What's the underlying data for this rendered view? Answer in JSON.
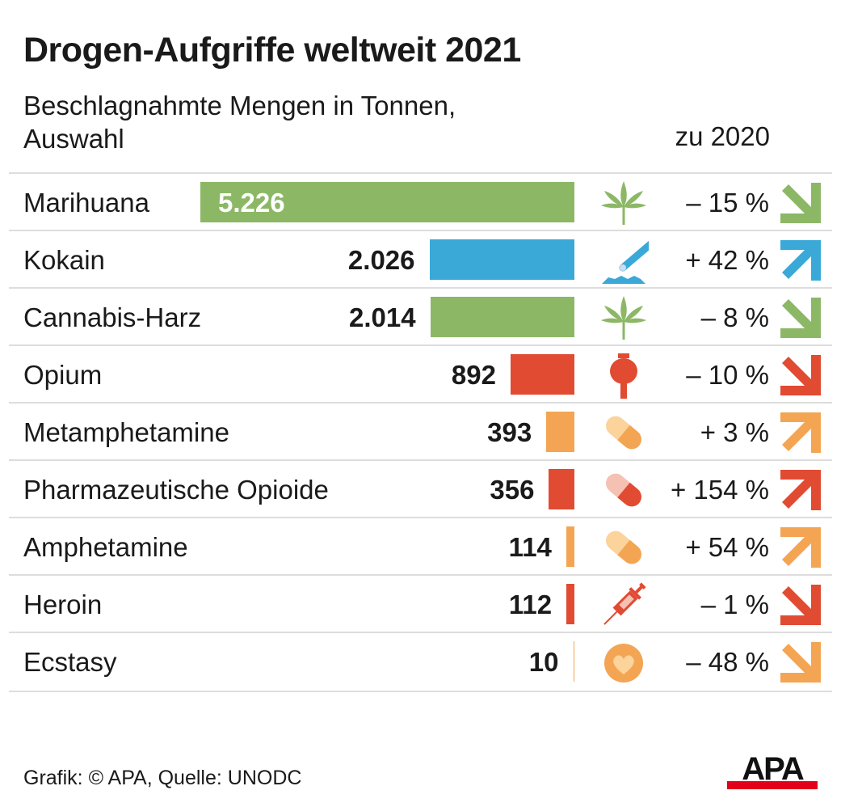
{
  "title": "Drogen-Aufgriffe weltweit 2021",
  "subtitle_line1": "Beschlagnahmte Mengen in Tonnen,",
  "subtitle_line2": "Auswahl",
  "column_header": "zu 2020",
  "footer": "Grafik: © APA, Quelle: UNODC",
  "logo_text": "APA",
  "colors": {
    "green": "#8cb866",
    "blue": "#3aa9d8",
    "red": "#e04b32",
    "orange": "#f3a553"
  },
  "chart_data": {
    "type": "bar",
    "orientation": "horizontal",
    "unit": "Tonnen",
    "categories": [
      "Marihuana",
      "Kokain",
      "Cannabis-Harz",
      "Opium",
      "Metamphetamine",
      "Pharmazeutische Opioide",
      "Amphetamine",
      "Heroin",
      "Ecstasy"
    ],
    "values": [
      5226,
      2026,
      2014,
      892,
      393,
      356,
      114,
      112,
      10
    ],
    "value_labels": [
      "5.226",
      "2.026",
      "2.014",
      "892",
      "393",
      "356",
      "114",
      "112",
      "10"
    ],
    "change_vs_2020": [
      "– 15 %",
      "+ 42 %",
      "– 8 %",
      "– 10 %",
      "+ 3 %",
      "+ 154 %",
      "+ 54 %",
      "– 1 %",
      "– 48 %"
    ],
    "change_direction": [
      "down",
      "up",
      "down",
      "down",
      "up",
      "up",
      "up",
      "down",
      "down"
    ],
    "bar_colors": [
      "green",
      "blue",
      "green",
      "red",
      "orange",
      "red",
      "orange",
      "red",
      "orange"
    ],
    "icons": [
      "cannabis-leaf-icon",
      "cocaine-straw-icon",
      "cannabis-leaf-icon",
      "poppy-icon",
      "pill-icon",
      "pill-icon",
      "pill-icon",
      "syringe-icon",
      "ecstasy-heart-icon"
    ]
  }
}
